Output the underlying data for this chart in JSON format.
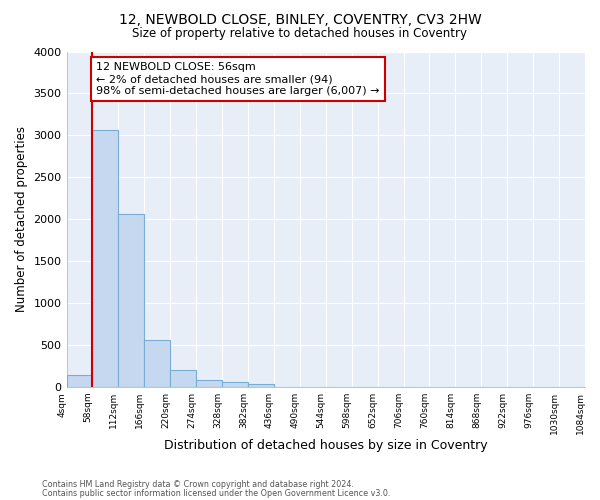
{
  "title_line1": "12, NEWBOLD CLOSE, BINLEY, COVENTRY, CV3 2HW",
  "title_line2": "Size of property relative to detached houses in Coventry",
  "xlabel": "Distribution of detached houses by size in Coventry",
  "ylabel": "Number of detached properties",
  "bin_labels": [
    "4sqm",
    "58sqm",
    "112sqm",
    "166sqm",
    "220sqm",
    "274sqm",
    "328sqm",
    "382sqm",
    "436sqm",
    "490sqm",
    "544sqm",
    "598sqm",
    "652sqm",
    "706sqm",
    "760sqm",
    "814sqm",
    "868sqm",
    "922sqm",
    "976sqm",
    "1030sqm",
    "1084sqm"
  ],
  "bar_values": [
    140,
    3060,
    2060,
    560,
    200,
    80,
    55,
    40,
    0,
    0,
    0,
    0,
    0,
    0,
    0,
    0,
    0,
    0,
    0,
    0
  ],
  "bar_color": "#c5d8f0",
  "bar_edge_color": "#7aadd4",
  "vline_x": 1,
  "vline_color": "#cc0000",
  "annotation_text": "12 NEWBOLD CLOSE: 56sqm\n← 2% of detached houses are smaller (94)\n98% of semi-detached houses are larger (6,007) →",
  "annotation_box_color": "#cc0000",
  "ylim": [
    0,
    4000
  ],
  "yticks": [
    0,
    500,
    1000,
    1500,
    2000,
    2500,
    3000,
    3500,
    4000
  ],
  "footer_line1": "Contains HM Land Registry data © Crown copyright and database right 2024.",
  "footer_line2": "Contains public sector information licensed under the Open Government Licence v3.0.",
  "bg_color": "#ffffff",
  "plot_bg_color": "#e8eef8",
  "grid_color": "#ffffff"
}
